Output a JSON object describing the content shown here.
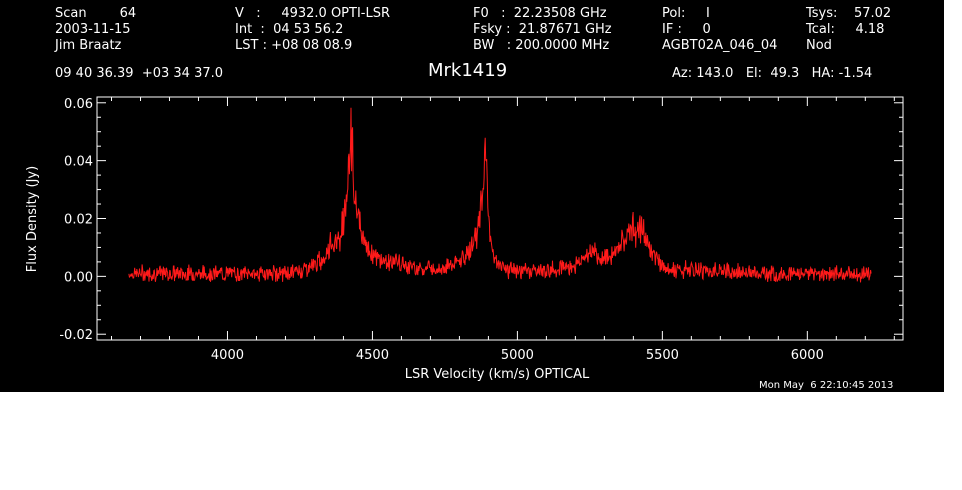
{
  "header": {
    "col1": [
      "Scan        64",
      "2003-11-15",
      "Jim Braatz"
    ],
    "col2": [
      "V   :     4932.0 OPTI-LSR",
      "Int  :  04 53 56.2",
      "LST : +08 08 08.9"
    ],
    "col3": [
      "F0   :  22.23508 GHz",
      "Fsky :  21.87671 GHz",
      "BW   : 200.0000 MHz"
    ],
    "col4": [
      "Pol:     I",
      "IF :     0",
      "AGBT02A_046_04"
    ],
    "col5": [
      "Tsys:    57.02",
      "Tcal:     4.18",
      "Nod"
    ],
    "coords": "09 40 36.39  +03 34 37.0",
    "source": "Mrk1419",
    "azelha": "Az: 143.0   El:  49.3   HA: -1.54",
    "timestamp": "Mon May  6 22:10:45 2013"
  },
  "colors": {
    "background": "#000000",
    "axes": "#ffffff",
    "trace": "#ff1a1a"
  },
  "chart_data": {
    "type": "line",
    "xlabel": "LSR Velocity (km/s) OPTICAL",
    "ylabel": "Flux Density (Jy)",
    "xlim": [
      3550,
      6330
    ],
    "ylim": [
      -0.022,
      0.062
    ],
    "x_ticks": [
      "4000",
      "4500",
      "5000",
      "5500",
      "6000"
    ],
    "y_ticks": [
      "-0.02",
      "0.00",
      "0.02",
      "0.04",
      "0.06"
    ],
    "grid": false,
    "series": [
      {
        "x": [
          3660,
          3700,
          3800,
          3900,
          4000,
          4100,
          4200,
          4250,
          4300,
          4330,
          4350,
          4370,
          4390,
          4400,
          4410,
          4420,
          4425,
          4430,
          4435,
          4440,
          4450,
          4460,
          4480,
          4500,
          4520,
          4550,
          4580,
          4600,
          4650,
          4700,
          4750,
          4800,
          4830,
          4850,
          4870,
          4880,
          4890,
          4895,
          4900,
          4910,
          4920,
          4950,
          5000,
          5050,
          5100,
          5150,
          5200,
          5230,
          5250,
          5270,
          5300,
          5330,
          5360,
          5380,
          5390,
          5400,
          5410,
          5420,
          5430,
          5440,
          5450,
          5460,
          5480,
          5500,
          5520,
          5550,
          5600,
          5700,
          5800,
          5900,
          6000,
          6100,
          6200,
          6220
        ],
        "values": [
          0.001,
          0.001,
          0.001,
          0.001,
          0.001,
          0.001,
          0.001,
          0.002,
          0.004,
          0.006,
          0.01,
          0.012,
          0.014,
          0.02,
          0.028,
          0.036,
          0.052,
          0.045,
          0.033,
          0.028,
          0.022,
          0.016,
          0.01,
          0.008,
          0.006,
          0.005,
          0.005,
          0.004,
          0.003,
          0.003,
          0.003,
          0.005,
          0.008,
          0.012,
          0.02,
          0.03,
          0.042,
          0.032,
          0.02,
          0.012,
          0.006,
          0.003,
          0.002,
          0.002,
          0.002,
          0.003,
          0.004,
          0.006,
          0.008,
          0.007,
          0.006,
          0.008,
          0.012,
          0.015,
          0.018,
          0.018,
          0.016,
          0.014,
          0.017,
          0.014,
          0.012,
          0.009,
          0.006,
          0.004,
          0.003,
          0.002,
          0.002,
          0.002,
          0.001,
          0.001,
          0.001,
          0.001,
          0.001,
          0.001
        ]
      }
    ]
  }
}
